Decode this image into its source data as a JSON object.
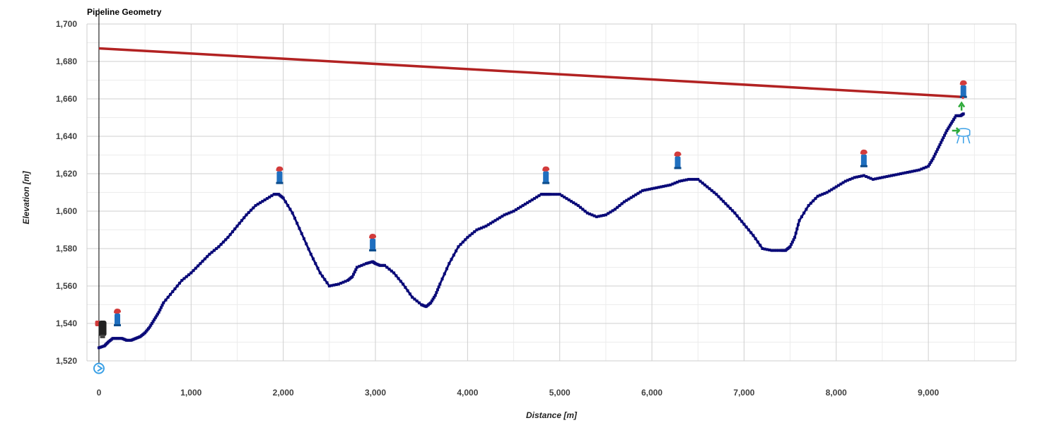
{
  "chart_data": {
    "type": "line",
    "title": "Pipeline Geometry",
    "xlabel": "Distance [m]",
    "ylabel": "Elevation [m]",
    "xlim": [
      -130,
      9950
    ],
    "ylim": [
      1514,
      1700
    ],
    "x_ticks": [
      0,
      1000,
      2000,
      3000,
      4000,
      5000,
      6000,
      7000,
      8000,
      9000
    ],
    "x_tick_labels": [
      "0",
      "1,000",
      "2,000",
      "3,000",
      "4,000",
      "5,000",
      "6,000",
      "7,000",
      "8,000",
      "9,000"
    ],
    "y_ticks": [
      1520,
      1540,
      1560,
      1580,
      1600,
      1620,
      1640,
      1660,
      1680,
      1700
    ],
    "y_tick_labels": [
      "1,520",
      "1,540",
      "1,560",
      "1,580",
      "1,600",
      "1,620",
      "1,640",
      "1,660",
      "1,680",
      "1,700"
    ],
    "grid": true,
    "series": [
      {
        "role": "hydraulic-grade-line",
        "color": "#b22222",
        "x": [
          0,
          9380
        ],
        "y": [
          1687,
          1661
        ]
      },
      {
        "role": "pipeline-profile",
        "color": "#0a0a78",
        "x": [
          0,
          60,
          100,
          150,
          200,
          250,
          300,
          350,
          400,
          450,
          500,
          550,
          600,
          650,
          700,
          800,
          900,
          1000,
          1100,
          1200,
          1300,
          1400,
          1500,
          1600,
          1700,
          1800,
          1900,
          1950,
          2000,
          2100,
          2200,
          2300,
          2400,
          2500,
          2600,
          2700,
          2750,
          2800,
          2900,
          2970,
          3000,
          3050,
          3100,
          3200,
          3300,
          3400,
          3500,
          3550,
          3600,
          3650,
          3700,
          3800,
          3900,
          4000,
          4100,
          4200,
          4300,
          4400,
          4500,
          4600,
          4700,
          4800,
          4850,
          4900,
          5000,
          5100,
          5200,
          5300,
          5400,
          5500,
          5600,
          5700,
          5800,
          5900,
          6000,
          6100,
          6200,
          6300,
          6400,
          6500,
          6600,
          6700,
          6800,
          6900,
          7000,
          7100,
          7200,
          7300,
          7400,
          7450,
          7500,
          7550,
          7600,
          7700,
          7800,
          7900,
          8000,
          8100,
          8200,
          8300,
          8400,
          8500,
          8600,
          8700,
          8800,
          8900,
          9000,
          9050,
          9100,
          9150,
          9200,
          9250,
          9300,
          9350,
          9380
        ],
        "y": [
          1527,
          1528,
          1530,
          1532,
          1532,
          1532,
          1531,
          1531,
          1532,
          1533,
          1535,
          1538,
          1542,
          1546,
          1551,
          1557,
          1563,
          1567,
          1572,
          1577,
          1581,
          1586,
          1592,
          1598,
          1603,
          1606,
          1609,
          1609,
          1607,
          1599,
          1588,
          1577,
          1567,
          1560,
          1561,
          1563,
          1565,
          1570,
          1572,
          1573,
          1572,
          1571,
          1571,
          1567,
          1561,
          1554,
          1550,
          1549,
          1551,
          1555,
          1561,
          1572,
          1581,
          1586,
          1590,
          1592,
          1595,
          1598,
          1600,
          1603,
          1606,
          1609,
          1609,
          1609,
          1609,
          1606,
          1603,
          1599,
          1597,
          1598,
          1601,
          1605,
          1608,
          1611,
          1612,
          1613,
          1614,
          1616,
          1617,
          1617,
          1613,
          1609,
          1604,
          1599,
          1593,
          1587,
          1580,
          1579,
          1579,
          1579,
          1581,
          1586,
          1595,
          1603,
          1608,
          1610,
          1613,
          1616,
          1618,
          1619,
          1617,
          1618,
          1619,
          1620,
          1621,
          1622,
          1624,
          1628,
          1633,
          1638,
          1643,
          1647,
          1651,
          1651,
          1652
        ]
      }
    ],
    "symbols": [
      {
        "name": "pump-icon",
        "x": 0,
        "y": 1516
      },
      {
        "name": "inline-valve-icon",
        "x": 20,
        "y": 1537
      },
      {
        "name": "air-valve-icon",
        "x": 200,
        "y": 1543
      },
      {
        "name": "air-valve-icon",
        "x": 1960,
        "y": 1619
      },
      {
        "name": "air-valve-icon",
        "x": 2970,
        "y": 1583
      },
      {
        "name": "air-valve-icon",
        "x": 4850,
        "y": 1619
      },
      {
        "name": "air-valve-icon",
        "x": 6280,
        "y": 1627
      },
      {
        "name": "air-valve-icon",
        "x": 8300,
        "y": 1628
      },
      {
        "name": "air-valve-icon",
        "x": 9380,
        "y": 1665
      },
      {
        "name": "flow-direction-icon",
        "x": 9360,
        "y": 1656
      },
      {
        "name": "tank-icon",
        "x": 9380,
        "y": 1643
      }
    ]
  }
}
